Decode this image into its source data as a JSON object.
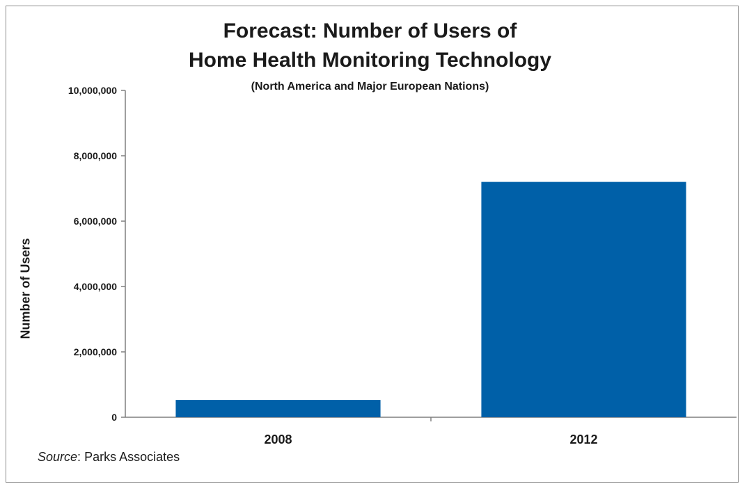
{
  "chart_data": {
    "type": "bar",
    "title_line1": "Forecast: Number of Users of",
    "title_line2": "Home Health Monitoring Technology",
    "subtitle": "(North America and Major European Nations)",
    "ylabel": "Number of Users",
    "xlabel": "",
    "categories": [
      "2008",
      "2012"
    ],
    "values": [
      530000,
      7200000
    ],
    "ylim": [
      0,
      10000000
    ],
    "yticks": [
      0,
      2000000,
      4000000,
      6000000,
      8000000,
      10000000
    ],
    "ytick_labels": [
      "0",
      "2,000,000",
      "4,000,000",
      "6,000,000",
      "8,000,000",
      "10,000,000"
    ],
    "grid": false,
    "legend": "none",
    "bar_color": "#0060a8"
  },
  "source": {
    "label": "Source",
    "separator": ":",
    "text": "Parks Associates"
  }
}
